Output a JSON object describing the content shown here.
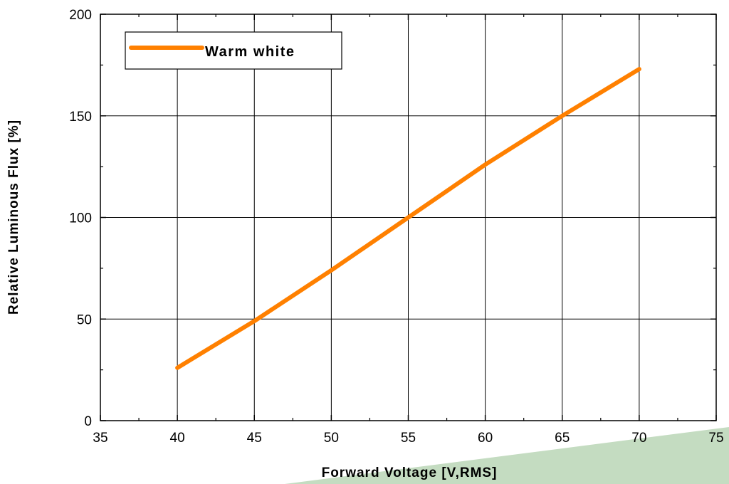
{
  "chart_data": {
    "type": "line",
    "title": "",
    "xlabel": "Forward Voltage [V,RMS]",
    "ylabel": "Relative Luminous Flux [%]",
    "xlim": [
      35,
      75
    ],
    "ylim": [
      0,
      200
    ],
    "xticks": [
      35,
      40,
      45,
      50,
      55,
      60,
      65,
      70,
      75
    ],
    "yticks": [
      0,
      50,
      100,
      150,
      200
    ],
    "grid": true,
    "legend_position": "top-left",
    "series": [
      {
        "name": "Warm white",
        "color": "#ff8000",
        "x": [
          40,
          45,
          50,
          55,
          60,
          65,
          70
        ],
        "y": [
          26,
          49,
          74,
          100,
          126,
          150,
          173
        ]
      }
    ]
  },
  "colors": {
    "series_line": "#ff8000",
    "decor_green": "#c4dcc1"
  }
}
